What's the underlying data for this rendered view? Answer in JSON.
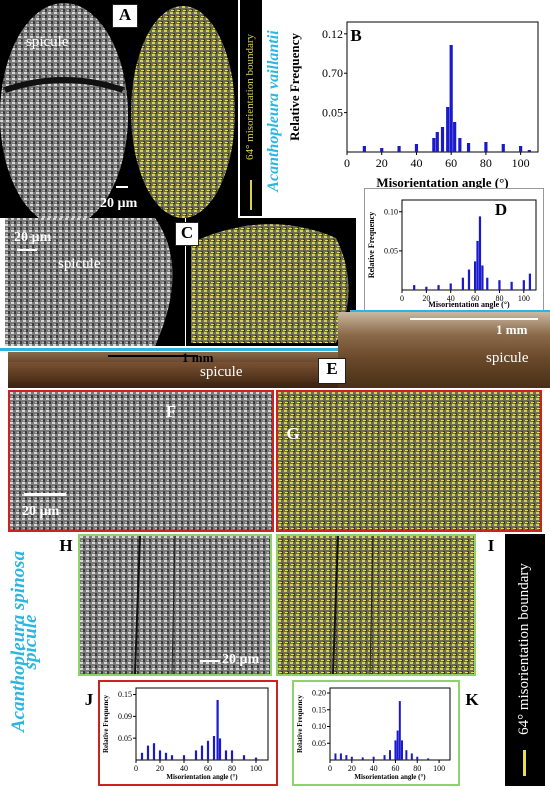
{
  "species_top": "Acanthopleura vaillantii",
  "species_bottom_1": "Acanthopleura spinosa",
  "species_bottom_2": "spicule",
  "boundary_top": "64° misorientation boundary",
  "boundary_bottom": "64° misorientation boundary",
  "labels": {
    "A": "A",
    "B": "B",
    "C": "C",
    "D": "D",
    "E": "E",
    "F": "F",
    "G": "G",
    "H": "H",
    "I": "I",
    "J": "J",
    "K": "K"
  },
  "text": {
    "spicule_a": "spicule",
    "spicule_c": "spicule",
    "spicule_e1": "spicule",
    "spicule_e2": "spicule",
    "scale_a": "20 µm",
    "scale_c": "20 µm",
    "scale_f": "20 µm",
    "scale_h": "20 µm",
    "scale_e1": "1 mm",
    "scale_e2": "1 mm"
  },
  "colors": {
    "accent": "#2bb5e0",
    "bar": "#1a1acc",
    "ebsd_yellow": "#d9d24a",
    "red_frame": "#cc2222",
    "green_frame": "#8fd16a"
  },
  "chart_data": [
    {
      "id": "B",
      "type": "bar",
      "xlabel": "Misorientation angle (°)",
      "ylabel": "Relative Frequency",
      "xlim": [
        0,
        110
      ],
      "ylim": [
        0,
        0.13
      ],
      "xticks": [
        "0",
        "20",
        "40",
        "60",
        "80",
        "100"
      ],
      "yticks": [
        "0.12",
        "0.70",
        "0.05"
      ],
      "x": [
        10,
        20,
        30,
        40,
        50,
        52,
        55,
        58,
        60,
        62,
        65,
        70,
        80,
        90,
        100,
        105
      ],
      "values": [
        0.006,
        0.004,
        0.006,
        0.008,
        0.014,
        0.02,
        0.025,
        0.045,
        0.107,
        0.03,
        0.014,
        0.009,
        0.01,
        0.008,
        0.006,
        0.002
      ]
    },
    {
      "id": "D",
      "type": "bar",
      "xlabel": "Misorientation angle (°)",
      "ylabel": "Relative Frequency",
      "xlim": [
        0,
        110
      ],
      "ylim": [
        0,
        0.11
      ],
      "xticks": [
        "0",
        "20",
        "40",
        "60",
        "80",
        "100"
      ],
      "yticks": [
        "0.10",
        "0.05"
      ],
      "x": [
        10,
        20,
        30,
        40,
        50,
        55,
        60,
        62,
        64,
        66,
        70,
        80,
        90,
        100,
        105
      ],
      "values": [
        0.006,
        0.004,
        0.006,
        0.008,
        0.015,
        0.025,
        0.035,
        0.06,
        0.09,
        0.03,
        0.015,
        0.012,
        0.01,
        0.012,
        0.02
      ]
    },
    {
      "id": "J",
      "type": "bar",
      "xlabel": "Misorientation angle (°)",
      "ylabel": "Relative Frequency",
      "xlim": [
        0,
        110
      ],
      "ylim": [
        0,
        0.15
      ],
      "xticks": [
        "0",
        "20",
        "40",
        "60",
        "80",
        "100"
      ],
      "yticks": [
        "0.15",
        "0.09",
        "0.05"
      ],
      "x": [
        5,
        10,
        15,
        20,
        25,
        30,
        40,
        50,
        55,
        60,
        65,
        68,
        70,
        75,
        80,
        90,
        100
      ],
      "values": [
        0.015,
        0.03,
        0.035,
        0.02,
        0.015,
        0.01,
        0.01,
        0.02,
        0.03,
        0.04,
        0.05,
        0.125,
        0.045,
        0.02,
        0.02,
        0.01,
        0.005
      ]
    },
    {
      "id": "K",
      "type": "bar",
      "xlabel": "Misorientation angle (°)",
      "ylabel": "Relative Frequency",
      "xlim": [
        0,
        110
      ],
      "ylim": [
        0,
        0.22
      ],
      "xticks": [
        "0",
        "20",
        "40",
        "60",
        "80",
        "100"
      ],
      "yticks": [
        "0.20",
        "0.15",
        "0.10",
        "0.05"
      ],
      "x": [
        5,
        10,
        15,
        20,
        30,
        40,
        50,
        55,
        60,
        62,
        64,
        66,
        70,
        75,
        80,
        90
      ],
      "values": [
        0.02,
        0.02,
        0.015,
        0.01,
        0.008,
        0.01,
        0.015,
        0.03,
        0.06,
        0.09,
        0.18,
        0.06,
        0.03,
        0.02,
        0.01,
        0.005
      ]
    }
  ]
}
